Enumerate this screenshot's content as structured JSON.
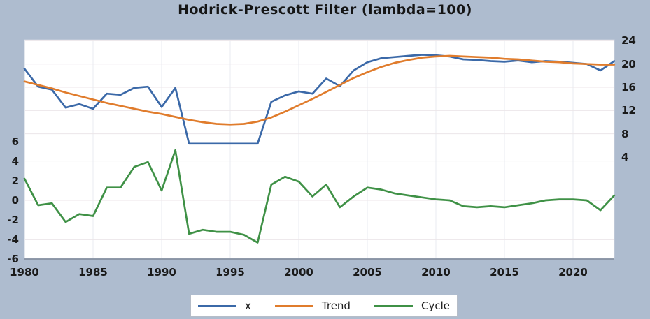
{
  "title": "Hodrick-Prescott Filter (lambda=100)",
  "colors": {
    "background": "#aebccf",
    "plot_background": "#ffffff",
    "series_x": "#3b69a8",
    "series_trend": "#e07c2c",
    "series_cycle": "#3f9146",
    "grid_horizontal": "#ece6e9",
    "grid_vertical": "#e8ebf0",
    "frame": "#c9d1de",
    "baseline": "#7e8899",
    "text": "#1a1a1a"
  },
  "legend": {
    "position": "bottom",
    "items": [
      {
        "label": "x",
        "color": "#3b69a8"
      },
      {
        "label": "Trend",
        "color": "#e07c2c"
      },
      {
        "label": "Cycle",
        "color": "#3f9146"
      }
    ]
  },
  "chart_data": {
    "type": "line",
    "title": "Hodrick-Prescott Filter (lambda=100)",
    "xlabel": "",
    "ylabel": "",
    "x": [
      1980,
      1981,
      1982,
      1983,
      1984,
      1985,
      1986,
      1987,
      1988,
      1989,
      1990,
      1991,
      1992,
      1993,
      1994,
      1995,
      1996,
      1997,
      1998,
      1999,
      2000,
      2001,
      2002,
      2003,
      2004,
      2005,
      2006,
      2007,
      2008,
      2009,
      2010,
      2011,
      2012,
      2013,
      2014,
      2015,
      2016,
      2017,
      2018,
      2019,
      2020,
      2021,
      2022,
      2023
    ],
    "series": [
      {
        "name": "x",
        "axis": "right",
        "color": "#3b69a8",
        "values": [
          19.2,
          16.1,
          15.6,
          12.5,
          13.1,
          12.3,
          14.9,
          14.7,
          15.9,
          16.1,
          12.6,
          15.9,
          6.3,
          6.3,
          6.3,
          6.3,
          6.3,
          6.3,
          13.5,
          14.6,
          15.3,
          14.9,
          17.5,
          16.2,
          18.9,
          20.3,
          21.0,
          21.2,
          21.4,
          21.6,
          21.5,
          21.3,
          20.8,
          20.7,
          20.5,
          20.4,
          20.6,
          20.3,
          20.5,
          20.4,
          20.2,
          20.0,
          18.9,
          20.5
        ]
      },
      {
        "name": "Trend",
        "axis": "right",
        "color": "#e07c2c",
        "values": [
          17.0,
          16.4,
          15.8,
          15.1,
          14.5,
          13.9,
          13.3,
          12.8,
          12.3,
          11.8,
          11.4,
          10.9,
          10.4,
          10.0,
          9.7,
          9.6,
          9.7,
          10.1,
          10.8,
          11.8,
          12.9,
          14.0,
          15.2,
          16.4,
          17.6,
          18.6,
          19.5,
          20.2,
          20.7,
          21.1,
          21.3,
          21.4,
          21.3,
          21.2,
          21.1,
          20.9,
          20.8,
          20.6,
          20.4,
          20.3,
          20.1,
          20.0,
          19.9,
          19.9
        ]
      },
      {
        "name": "Cycle",
        "axis": "left",
        "color": "#3f9146",
        "values": [
          2.2,
          -0.5,
          -0.3,
          -2.2,
          -1.4,
          -1.6,
          1.3,
          1.3,
          3.4,
          3.9,
          1.0,
          5.1,
          -3.4,
          -3.0,
          -3.2,
          -3.2,
          -3.5,
          -4.3,
          1.6,
          2.4,
          1.9,
          0.4,
          1.6,
          -0.7,
          0.4,
          1.3,
          1.1,
          0.7,
          0.5,
          0.3,
          0.1,
          0.0,
          -0.6,
          -0.7,
          -0.6,
          -0.7,
          -0.5,
          -0.3,
          0.0,
          0.1,
          0.1,
          0.0,
          -1.0,
          0.5
        ]
      }
    ],
    "axes": {
      "bottom_ticks": [
        1980,
        1985,
        1990,
        1995,
        2000,
        2005,
        2010,
        2015,
        2020
      ],
      "right_ticks": [
        24,
        20,
        16,
        12,
        8,
        4
      ],
      "left_ticks": [
        6,
        4,
        2,
        0,
        -2,
        -4,
        -6
      ],
      "xlim": [
        1980,
        2023
      ],
      "grid": true,
      "note_right_axis": "scale for x and Trend",
      "note_left_axis": "scale for Cycle"
    },
    "legend_position": "bottom"
  }
}
